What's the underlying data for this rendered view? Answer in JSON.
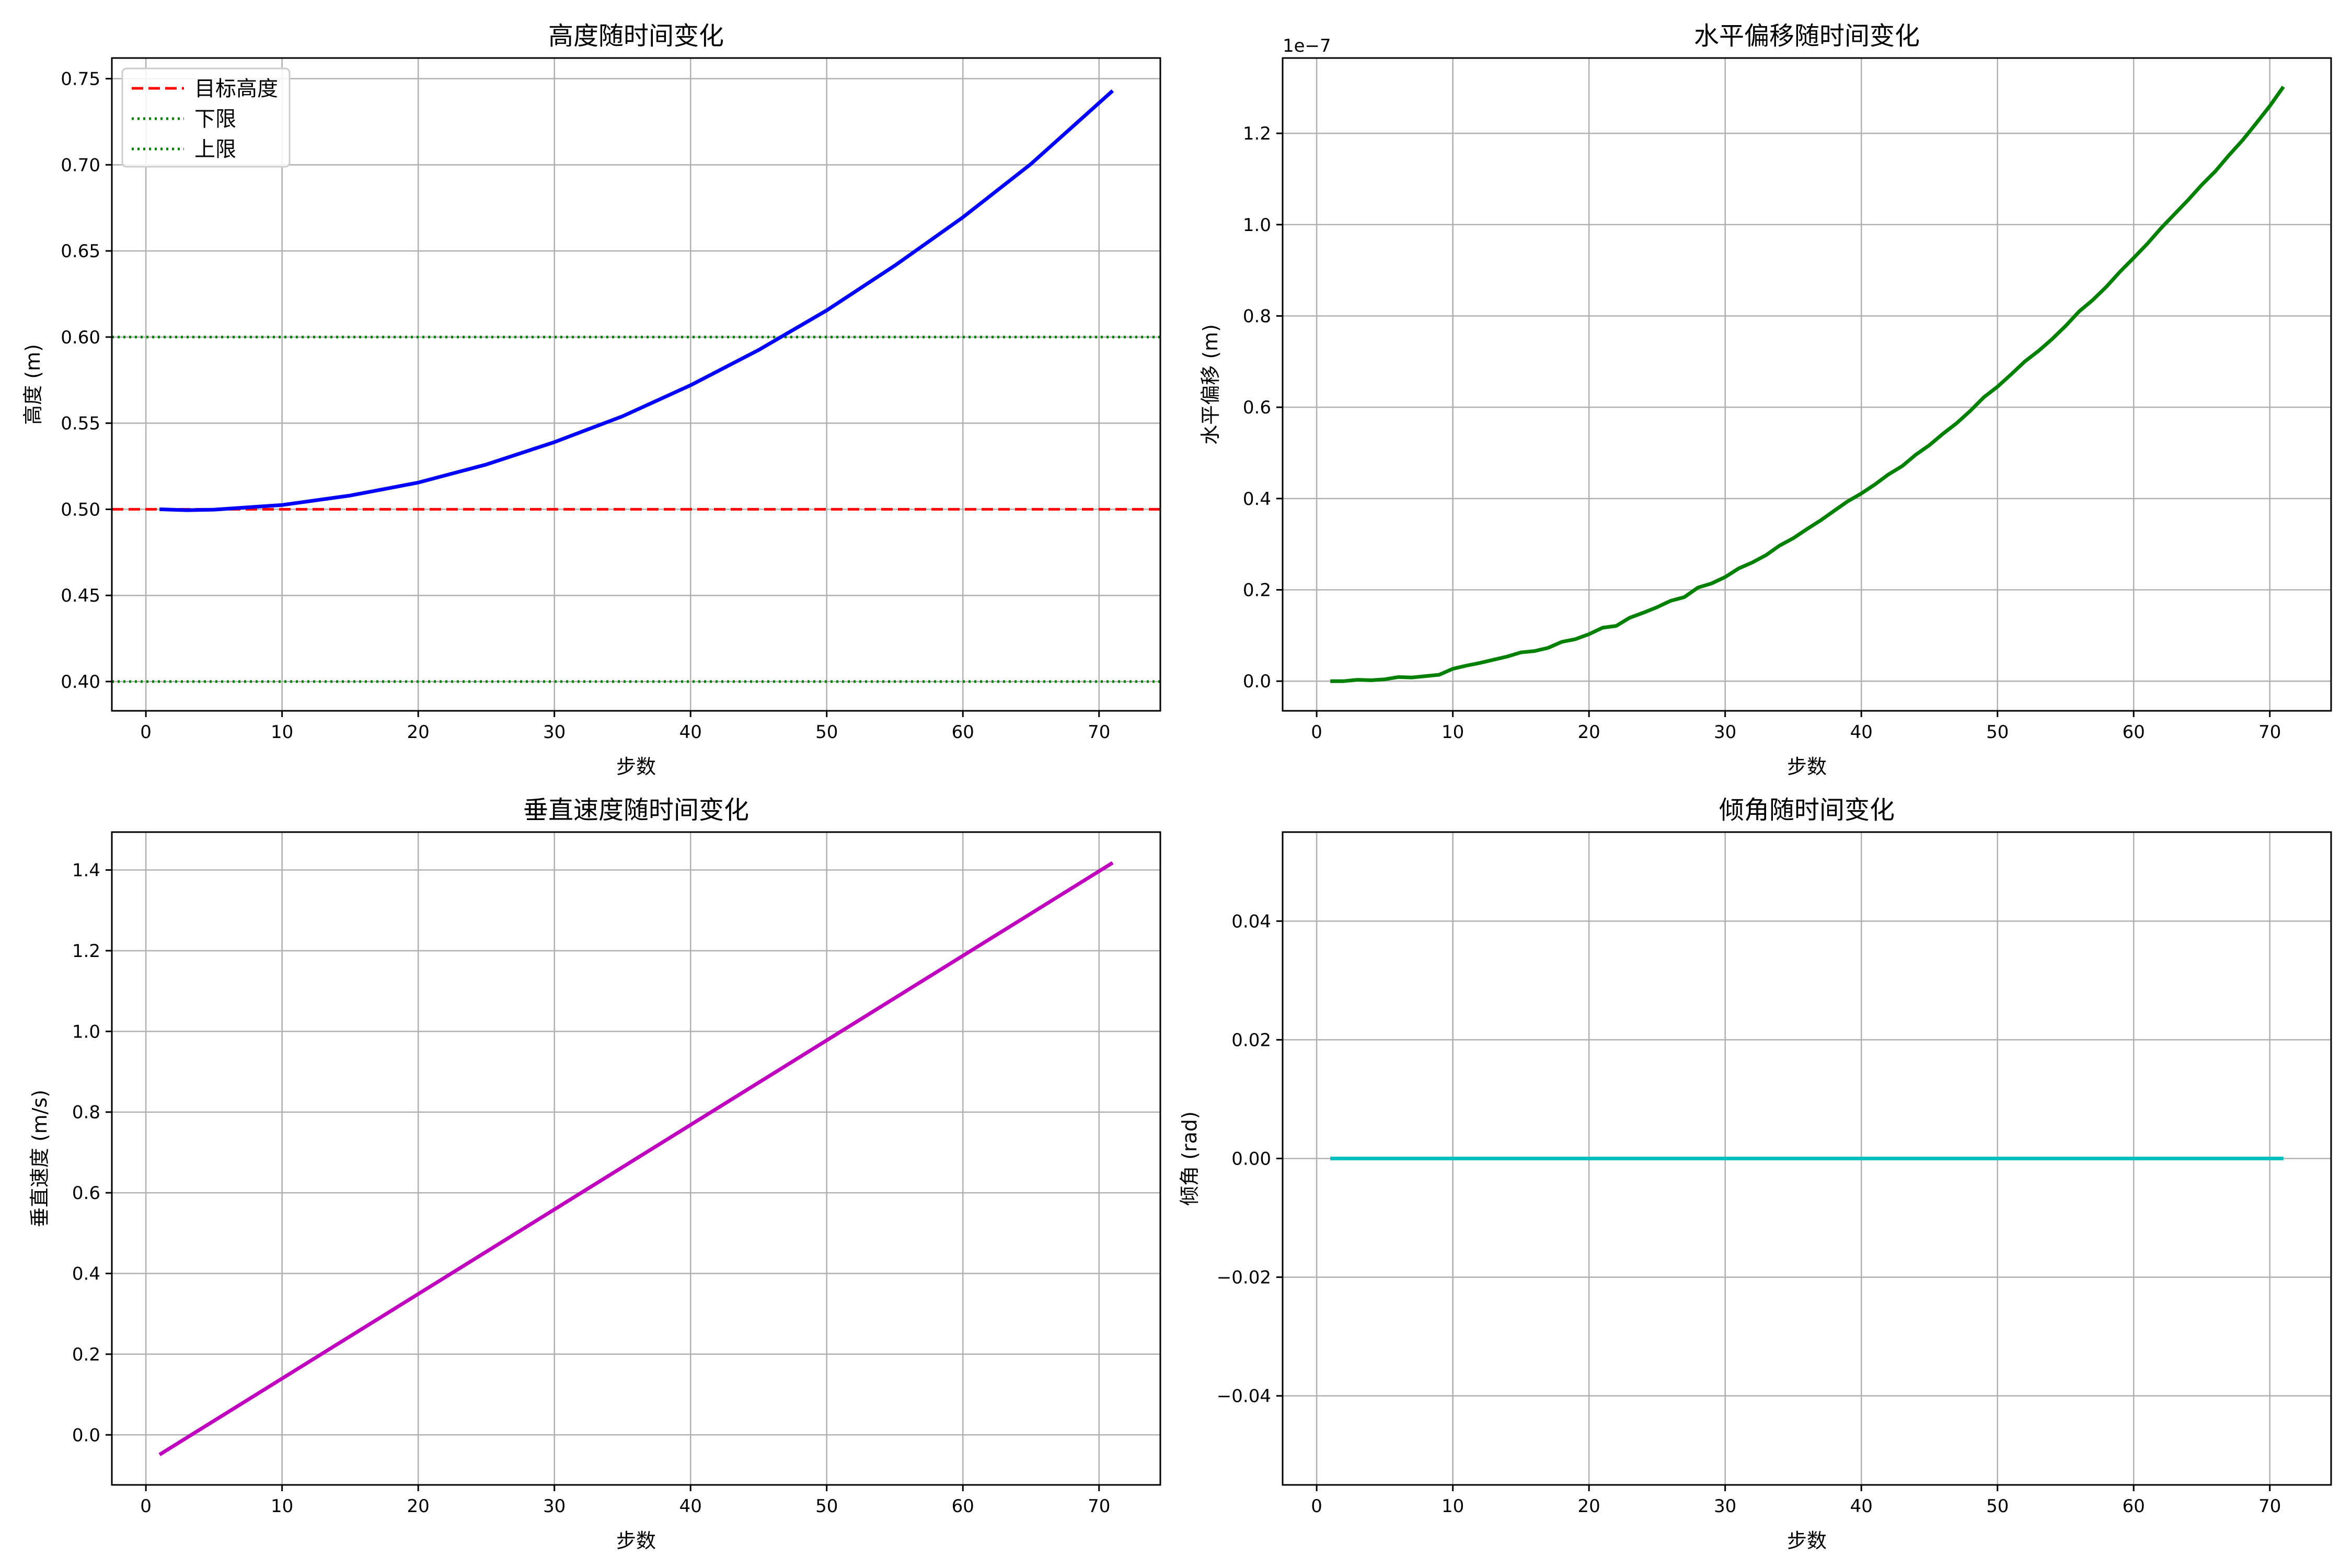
{
  "chart_data": [
    {
      "id": "height",
      "type": "line",
      "title": "高度随时间变化",
      "xlabel": "步数",
      "ylabel": "高度 (m)",
      "xlim": [
        -2.5,
        74.5
      ],
      "ylim": [
        0.383,
        0.762
      ],
      "xticks": [
        0,
        10,
        20,
        30,
        40,
        50,
        60,
        70
      ],
      "yticks": [
        0.4,
        0.45,
        0.5,
        0.55,
        0.6,
        0.65,
        0.7,
        0.75
      ],
      "ytick_decimals": 2,
      "grid": true,
      "legend": "upper-left",
      "series": [
        {
          "color": "#0000ff",
          "x": [
            1,
            3,
            5,
            10,
            15,
            20,
            25,
            30,
            35,
            40,
            45,
            50,
            55,
            60,
            65,
            71
          ],
          "y": [
            0.5,
            0.4995,
            0.4998,
            0.5025,
            0.508,
            0.5155,
            0.526,
            0.539,
            0.554,
            0.572,
            0.5925,
            0.6155,
            0.6415,
            0.6695,
            0.7005,
            0.743
          ]
        }
      ],
      "hlines": [
        {
          "name": "目标高度",
          "y": 0.5,
          "color": "#ff0000",
          "style": "dashed"
        },
        {
          "name": "下限",
          "y": 0.4,
          "color": "#008000",
          "style": "dotted"
        },
        {
          "name": "上限",
          "y": 0.6,
          "color": "#008000",
          "style": "dotted"
        }
      ]
    },
    {
      "id": "offset",
      "type": "line",
      "title": "水平偏移随时间变化",
      "xlabel": "步数",
      "ylabel": "水平偏移 (m)",
      "offset_text": "1e−7",
      "xlim": [
        -2.5,
        74.5
      ],
      "ylim": [
        -0.065,
        1.365
      ],
      "xticks": [
        0,
        10,
        20,
        30,
        40,
        50,
        60,
        70
      ],
      "yticks": [
        0.0,
        0.2,
        0.4,
        0.6,
        0.8,
        1.0,
        1.2
      ],
      "ytick_decimals": 1,
      "grid": true,
      "series": [
        {
          "color": "#008000",
          "x": [
            1,
            2,
            3,
            4,
            5,
            6,
            7,
            8,
            9,
            10,
            11,
            12,
            13,
            14,
            15,
            16,
            17,
            18,
            19,
            20,
            21,
            22,
            23,
            24,
            25,
            26,
            27,
            28,
            29,
            30,
            31,
            32,
            33,
            34,
            35,
            36,
            37,
            38,
            39,
            40,
            41,
            42,
            43,
            44,
            45,
            46,
            47,
            48,
            49,
            50,
            51,
            52,
            53,
            54,
            55,
            56,
            57,
            58,
            59,
            60,
            61,
            62,
            63,
            64,
            65,
            66,
            67,
            68,
            69,
            70,
            71
          ],
          "y": [
            0.0,
            0.0,
            0.003,
            0.002,
            0.004,
            0.009,
            0.008,
            0.011,
            0.014,
            0.027,
            0.034,
            0.04,
            0.047,
            0.054,
            0.063,
            0.066,
            0.073,
            0.086,
            0.092,
            0.103,
            0.117,
            0.121,
            0.139,
            0.15,
            0.162,
            0.176,
            0.184,
            0.205,
            0.214,
            0.228,
            0.247,
            0.26,
            0.276,
            0.297,
            0.313,
            0.333,
            0.352,
            0.373,
            0.394,
            0.411,
            0.431,
            0.453,
            0.471,
            0.496,
            0.517,
            0.542,
            0.565,
            0.592,
            0.622,
            0.645,
            0.672,
            0.7,
            0.723,
            0.749,
            0.778,
            0.81,
            0.835,
            0.864,
            0.897,
            0.927,
            0.958,
            0.992,
            1.023,
            1.054,
            1.087,
            1.117,
            1.152,
            1.185,
            1.222,
            1.26,
            1.302
          ]
        }
      ]
    },
    {
      "id": "velocity",
      "type": "line",
      "title": "垂直速度随时间变化",
      "xlabel": "步数",
      "ylabel": "垂直速度 (m/s)",
      "xlim": [
        -2.5,
        74.5
      ],
      "ylim": [
        -0.124,
        1.494
      ],
      "xticks": [
        0,
        10,
        20,
        30,
        40,
        50,
        60,
        70
      ],
      "yticks": [
        0.0,
        0.2,
        0.4,
        0.6,
        0.8,
        1.0,
        1.2,
        1.4
      ],
      "ytick_decimals": 1,
      "grid": true,
      "series": [
        {
          "color": "#bf00bf",
          "x": [
            1,
            71
          ],
          "y": [
            -0.049,
            1.418
          ]
        }
      ]
    },
    {
      "id": "tilt",
      "type": "line",
      "title": "倾角随时间变化",
      "xlabel": "步数",
      "ylabel": "倾角 (rad)",
      "xlim": [
        -2.5,
        74.5
      ],
      "ylim": [
        -0.055,
        0.055
      ],
      "xticks": [
        0,
        10,
        20,
        30,
        40,
        50,
        60,
        70
      ],
      "yticks": [
        -0.04,
        -0.02,
        0.0,
        0.02,
        0.04
      ],
      "ytick_decimals": 2,
      "grid": true,
      "series": [
        {
          "color": "#00bfbf",
          "x": [
            1,
            71
          ],
          "y": [
            0,
            0
          ]
        }
      ]
    }
  ]
}
